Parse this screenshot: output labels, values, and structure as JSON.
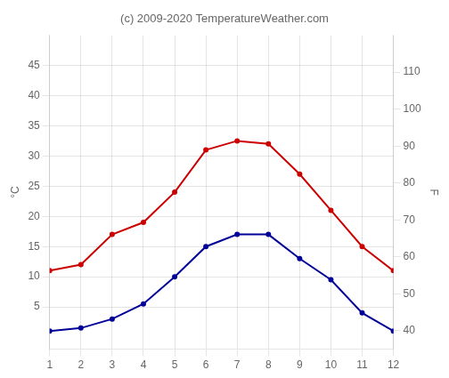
{
  "chart_data": {
    "type": "line",
    "title": "(c) 2009-2020 TemperatureWeather.com",
    "x": [
      1,
      2,
      3,
      4,
      5,
      6,
      7,
      8,
      9,
      10,
      11,
      12
    ],
    "series": [
      {
        "color": "#cc0000",
        "values": [
          11,
          12,
          17,
          19,
          24,
          31,
          32.5,
          32,
          27,
          21,
          15,
          11
        ]
      },
      {
        "color": "#000099",
        "values": [
          1,
          1.5,
          3,
          5.5,
          10,
          15,
          17,
          17,
          13,
          9.5,
          4,
          1
        ]
      }
    ],
    "xlim": [
      1,
      12
    ],
    "xticks": [
      1,
      2,
      3,
      4,
      5,
      6,
      7,
      8,
      9,
      10,
      11,
      12
    ],
    "ylim": [
      -2,
      50
    ],
    "yticks": [
      5,
      10,
      15,
      20,
      25,
      30,
      35,
      40,
      45
    ],
    "y2lim": [
      35,
      120
    ],
    "y2ticks": [
      40,
      50,
      60,
      70,
      80,
      90,
      100,
      110
    ],
    "ylabel": "°C",
    "y2label": "F",
    "grid": true
  }
}
